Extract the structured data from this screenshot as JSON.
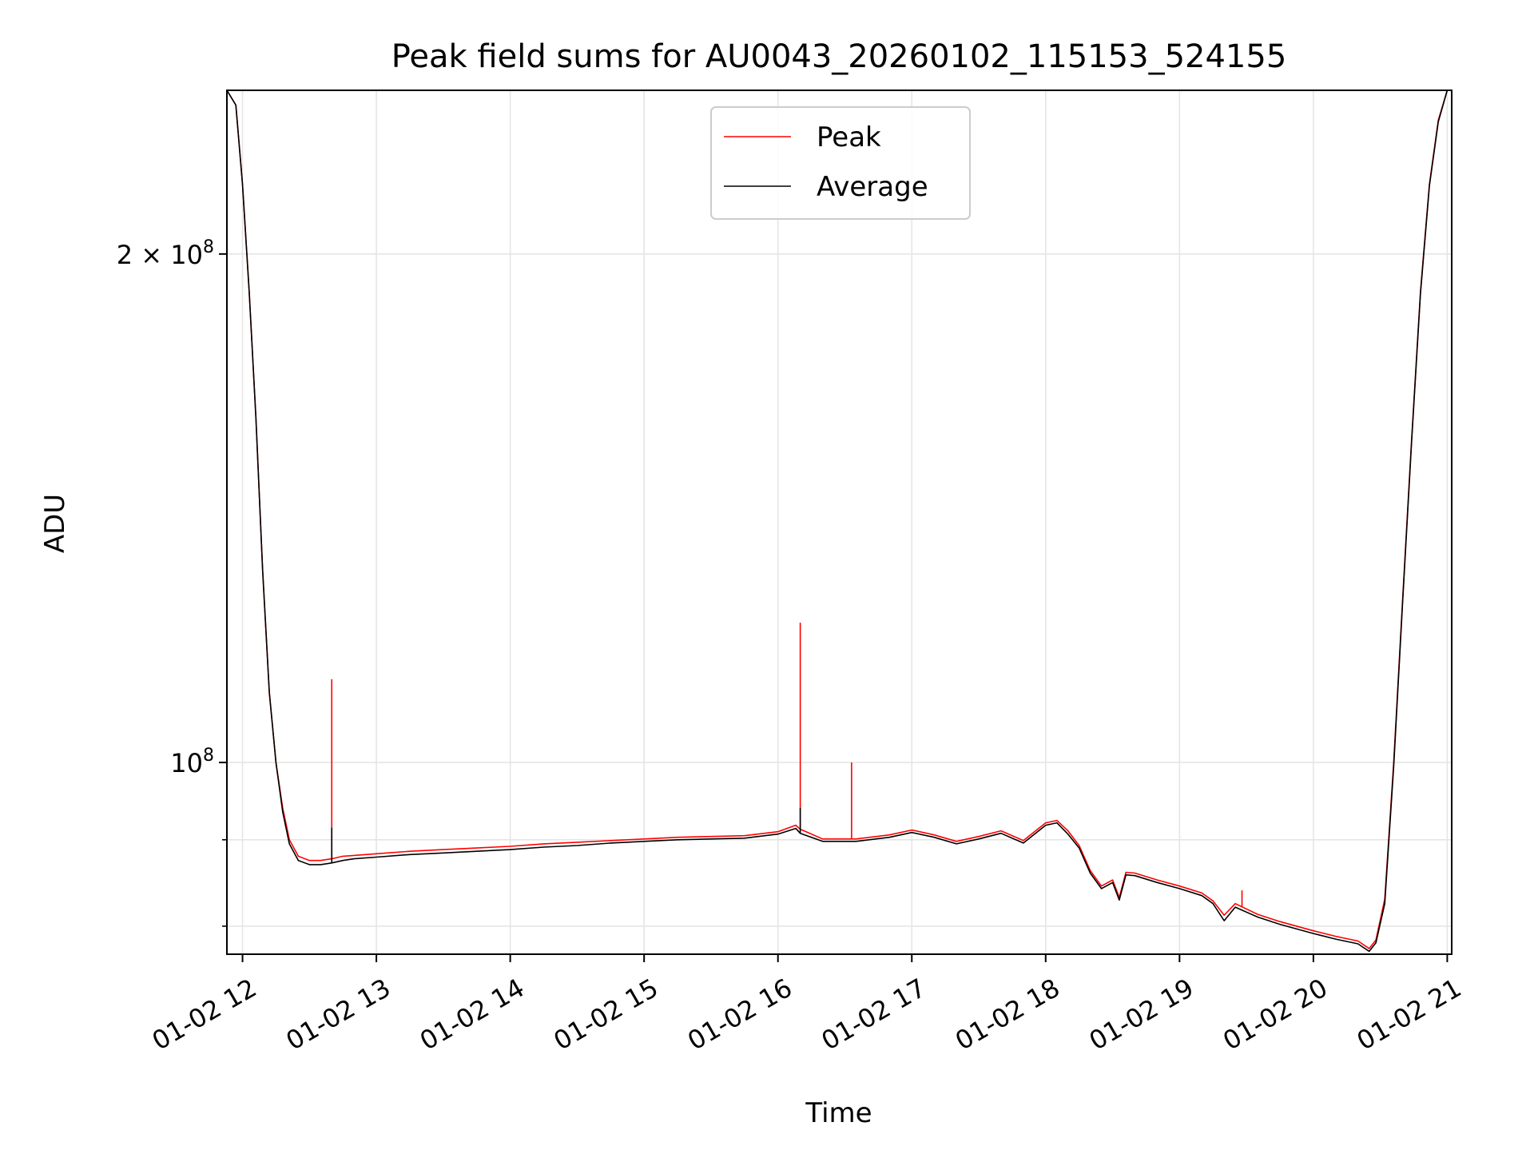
{
  "chart_data": {
    "type": "line",
    "title": "Peak field sums for AU0043_20260102_115153_524155",
    "xlabel": "Time",
    "ylabel": "ADU",
    "x_scale": "time",
    "y_scale": "log",
    "xlim": [
      "2026-01-02T11:53:00",
      "2026-01-02T21:02:00"
    ],
    "ylim": [
      77000000,
      250000000
    ],
    "grid": true,
    "legend": {
      "placement": "top-center",
      "entries": [
        "Peak",
        "Average"
      ]
    },
    "x_ticks": [
      {
        "value": "2026-01-02T12:00:00",
        "label": "01-02 12"
      },
      {
        "value": "2026-01-02T13:00:00",
        "label": "01-02 13"
      },
      {
        "value": "2026-01-02T14:00:00",
        "label": "01-02 14"
      },
      {
        "value": "2026-01-02T15:00:00",
        "label": "01-02 15"
      },
      {
        "value": "2026-01-02T16:00:00",
        "label": "01-02 16"
      },
      {
        "value": "2026-01-02T17:00:00",
        "label": "01-02 17"
      },
      {
        "value": "2026-01-02T18:00:00",
        "label": "01-02 18"
      },
      {
        "value": "2026-01-02T19:00:00",
        "label": "01-02 19"
      },
      {
        "value": "2026-01-02T20:00:00",
        "label": "01-02 20"
      },
      {
        "value": "2026-01-02T21:00:00",
        "label": "01-02 21"
      }
    ],
    "y_major_ticks": [
      {
        "value": 100000000,
        "label_base": "10",
        "label_exp": "8"
      },
      {
        "value": 200000000,
        "label_base": "2 × 10",
        "label_exp": "8"
      }
    ],
    "y_minor_ticks": [
      80000000,
      90000000
    ],
    "series": [
      {
        "name": "Peak",
        "color": "#ff0000",
        "x": [
          "2026-01-02T11:53:00",
          "2026-01-02T11:57:00",
          "2026-01-02T12:00:00",
          "2026-01-02T12:03:00",
          "2026-01-02T12:06:00",
          "2026-01-02T12:09:00",
          "2026-01-02T12:12:00",
          "2026-01-02T12:15:00",
          "2026-01-02T12:18:00",
          "2026-01-02T12:21:00",
          "2026-01-02T12:25:00",
          "2026-01-02T12:30:00",
          "2026-01-02T12:35:00",
          "2026-01-02T12:40:00",
          "2026-01-02T12:45:00",
          "2026-01-02T12:50:00",
          "2026-01-02T13:00:00",
          "2026-01-02T13:15:00",
          "2026-01-02T13:30:00",
          "2026-01-02T13:45:00",
          "2026-01-02T14:00:00",
          "2026-01-02T14:15:00",
          "2026-01-02T14:30:00",
          "2026-01-02T14:45:00",
          "2026-01-02T15:00:00",
          "2026-01-02T15:15:00",
          "2026-01-02T15:30:00",
          "2026-01-02T15:45:00",
          "2026-01-02T16:00:00",
          "2026-01-02T16:08:00",
          "2026-01-02T16:10:00",
          "2026-01-02T16:20:00",
          "2026-01-02T16:35:00",
          "2026-01-02T16:50:00",
          "2026-01-02T17:00:00",
          "2026-01-02T17:10:00",
          "2026-01-02T17:20:00",
          "2026-01-02T17:30:00",
          "2026-01-02T17:40:00",
          "2026-01-02T17:50:00",
          "2026-01-02T18:00:00",
          "2026-01-02T18:05:00",
          "2026-01-02T18:10:00",
          "2026-01-02T18:15:00",
          "2026-01-02T18:20:00",
          "2026-01-02T18:25:00",
          "2026-01-02T18:30:00",
          "2026-01-02T18:33:00",
          "2026-01-02T18:36:00",
          "2026-01-02T18:40:00",
          "2026-01-02T18:50:00",
          "2026-01-02T19:00:00",
          "2026-01-02T19:10:00",
          "2026-01-02T19:15:00",
          "2026-01-02T19:20:00",
          "2026-01-02T19:25:00",
          "2026-01-02T19:35:00",
          "2026-01-02T19:45:00",
          "2026-01-02T20:00:00",
          "2026-01-02T20:10:00",
          "2026-01-02T20:20:00",
          "2026-01-02T20:25:00",
          "2026-01-02T20:28:00",
          "2026-01-02T20:32:00",
          "2026-01-02T20:36:00",
          "2026-01-02T20:40:00",
          "2026-01-02T20:44:00",
          "2026-01-02T20:48:00",
          "2026-01-02T20:52:00",
          "2026-01-02T20:56:00",
          "2026-01-02T21:00:00"
        ],
        "values": [
          250000000,
          245000000,
          220000000,
          190000000,
          160000000,
          130000000,
          110000000,
          100000000,
          94000000,
          90000000,
          88000000,
          87500000,
          87500000,
          87700000,
          88000000,
          88100000,
          88300000,
          88600000,
          88800000,
          89000000,
          89200000,
          89500000,
          89700000,
          89900000,
          90100000,
          90300000,
          90400000,
          90500000,
          91000000,
          91800000,
          91300000,
          90100000,
          90100000,
          90600000,
          91200000,
          90600000,
          89800000,
          90400000,
          91100000,
          89900000,
          92100000,
          92400000,
          91100000,
          89300000,
          86300000,
          84500000,
          85200000,
          83200000,
          86100000,
          86000000,
          85200000,
          84500000,
          83700000,
          82800000,
          81200000,
          82500000,
          81300000,
          80500000,
          79500000,
          78900000,
          78400000,
          77600000,
          78500000,
          83000000,
          100000000,
          125000000,
          155000000,
          190000000,
          220000000,
          240000000,
          250000000
        ]
      },
      {
        "name": "Average",
        "color": "#000000",
        "x": [
          "2026-01-02T11:53:00",
          "2026-01-02T11:57:00",
          "2026-01-02T12:00:00",
          "2026-01-02T12:03:00",
          "2026-01-02T12:06:00",
          "2026-01-02T12:09:00",
          "2026-01-02T12:12:00",
          "2026-01-02T12:15:00",
          "2026-01-02T12:18:00",
          "2026-01-02T12:21:00",
          "2026-01-02T12:25:00",
          "2026-01-02T12:30:00",
          "2026-01-02T12:35:00",
          "2026-01-02T12:40:00",
          "2026-01-02T12:45:00",
          "2026-01-02T12:50:00",
          "2026-01-02T13:00:00",
          "2026-01-02T13:15:00",
          "2026-01-02T13:30:00",
          "2026-01-02T13:45:00",
          "2026-01-02T14:00:00",
          "2026-01-02T14:15:00",
          "2026-01-02T14:30:00",
          "2026-01-02T14:45:00",
          "2026-01-02T15:00:00",
          "2026-01-02T15:15:00",
          "2026-01-02T15:30:00",
          "2026-01-02T15:45:00",
          "2026-01-02T16:00:00",
          "2026-01-02T16:08:00",
          "2026-01-02T16:10:00",
          "2026-01-02T16:20:00",
          "2026-01-02T16:35:00",
          "2026-01-02T16:50:00",
          "2026-01-02T17:00:00",
          "2026-01-02T17:10:00",
          "2026-01-02T17:20:00",
          "2026-01-02T17:30:00",
          "2026-01-02T17:40:00",
          "2026-01-02T17:50:00",
          "2026-01-02T18:00:00",
          "2026-01-02T18:05:00",
          "2026-01-02T18:10:00",
          "2026-01-02T18:15:00",
          "2026-01-02T18:20:00",
          "2026-01-02T18:25:00",
          "2026-01-02T18:30:00",
          "2026-01-02T18:33:00",
          "2026-01-02T18:36:00",
          "2026-01-02T18:40:00",
          "2026-01-02T18:50:00",
          "2026-01-02T19:00:00",
          "2026-01-02T19:10:00",
          "2026-01-02T19:15:00",
          "2026-01-02T19:20:00",
          "2026-01-02T19:25:00",
          "2026-01-02T19:35:00",
          "2026-01-02T19:45:00",
          "2026-01-02T20:00:00",
          "2026-01-02T20:10:00",
          "2026-01-02T20:20:00",
          "2026-01-02T20:25:00",
          "2026-01-02T20:28:00",
          "2026-01-02T20:32:00",
          "2026-01-02T20:36:00",
          "2026-01-02T20:40:00",
          "2026-01-02T20:44:00",
          "2026-01-02T20:48:00",
          "2026-01-02T20:52:00",
          "2026-01-02T20:56:00",
          "2026-01-02T21:00:00"
        ],
        "values": [
          250000000,
          245000000,
          220000000,
          190000000,
          160000000,
          130000000,
          110000000,
          100000000,
          93500000,
          89500000,
          87500000,
          87000000,
          87000000,
          87200000,
          87500000,
          87700000,
          87900000,
          88200000,
          88400000,
          88600000,
          88800000,
          89100000,
          89300000,
          89600000,
          89800000,
          90000000,
          90100000,
          90200000,
          90700000,
          91400000,
          90800000,
          89800000,
          89800000,
          90300000,
          90900000,
          90300000,
          89500000,
          90100000,
          90800000,
          89600000,
          91800000,
          92100000,
          90700000,
          89000000,
          86000000,
          84200000,
          84900000,
          82900000,
          85800000,
          85700000,
          84900000,
          84200000,
          83400000,
          82500000,
          80600000,
          82100000,
          81000000,
          80200000,
          79200000,
          78600000,
          78100000,
          77300000,
          78200000,
          82500000,
          99500000,
          124500000,
          154500000,
          189500000,
          219500000,
          239500000,
          250000000
        ]
      }
    ],
    "spikes": [
      {
        "series": "Peak",
        "x": "2026-01-02T12:40:00",
        "value": 112000000
      },
      {
        "series": "Peak",
        "x": "2026-01-02T16:10:00",
        "value": 121000000
      },
      {
        "series": "Peak",
        "x": "2026-01-02T16:33:00",
        "value": 100000000
      },
      {
        "series": "Peak",
        "x": "2026-01-02T19:28:00",
        "value": 84000000
      },
      {
        "series": "Average",
        "x": "2026-01-02T12:40:00",
        "value": 91500000
      },
      {
        "series": "Average",
        "x": "2026-01-02T16:10:00",
        "value": 94000000
      }
    ]
  }
}
